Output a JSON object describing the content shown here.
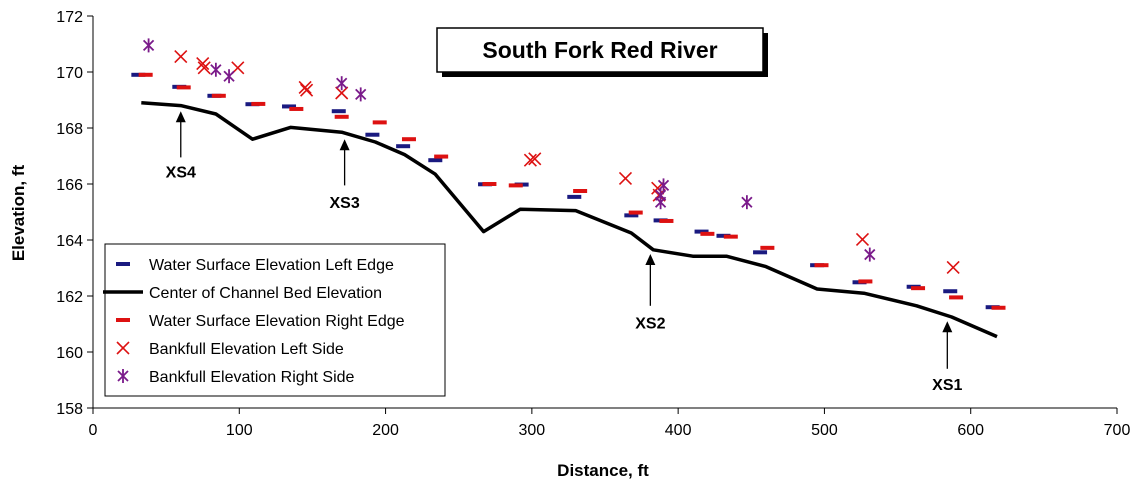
{
  "chart_data": {
    "type": "scatter",
    "title": "South Fork Red River",
    "xlabel": "Distance, ft",
    "ylabel": "Elevation, ft",
    "xlim": [
      0,
      700
    ],
    "ylim": [
      158,
      172
    ],
    "xticks": [
      0,
      100,
      200,
      300,
      400,
      500,
      600,
      700
    ],
    "yticks": [
      158,
      160,
      162,
      164,
      166,
      168,
      170,
      172
    ],
    "grid": false,
    "legend_position": "bottom-left",
    "series": [
      {
        "name": "Water Surface Elevation Left Edge",
        "marker": "dash",
        "color": "#1a1a80",
        "points": [
          [
            31,
            169.9
          ],
          [
            59,
            169.47
          ],
          [
            83,
            169.15
          ],
          [
            109,
            168.85
          ],
          [
            134,
            168.77
          ],
          [
            168,
            168.6
          ],
          [
            191,
            167.76
          ],
          [
            212,
            167.35
          ],
          [
            234,
            166.85
          ],
          [
            268,
            165.99
          ],
          [
            293,
            165.98
          ],
          [
            329,
            165.54
          ],
          [
            368,
            164.88
          ],
          [
            388,
            164.7
          ],
          [
            416,
            164.3
          ],
          [
            431,
            164.15
          ],
          [
            456,
            163.56
          ],
          [
            495,
            163.1
          ],
          [
            524,
            162.49
          ],
          [
            561,
            162.33
          ],
          [
            586,
            162.17
          ],
          [
            615,
            161.6
          ]
        ]
      },
      {
        "name": "Center of Channel Bed Elevation",
        "marker": "line",
        "color": "#000000",
        "points": [
          [
            33,
            168.9
          ],
          [
            60,
            168.8
          ],
          [
            84,
            168.5
          ],
          [
            109,
            167.6
          ],
          [
            135,
            168.02
          ],
          [
            170,
            167.85
          ],
          [
            193,
            167.5
          ],
          [
            213,
            167.05
          ],
          [
            234,
            166.35
          ],
          [
            267,
            164.3
          ],
          [
            292,
            165.1
          ],
          [
            330,
            165.05
          ],
          [
            368,
            164.25
          ],
          [
            383,
            163.65
          ],
          [
            410,
            163.42
          ],
          [
            433,
            163.42
          ],
          [
            460,
            163.05
          ],
          [
            495,
            162.25
          ],
          [
            527,
            162.1
          ],
          [
            563,
            161.65
          ],
          [
            587,
            161.25
          ],
          [
            618,
            160.55
          ]
        ]
      },
      {
        "name": "Water Surface Elevation Right Edge",
        "marker": "dash",
        "color": "#dd1111",
        "points": [
          [
            36,
            169.9
          ],
          [
            62,
            169.45
          ],
          [
            86,
            169.15
          ],
          [
            113,
            168.86
          ],
          [
            139,
            168.68
          ],
          [
            170,
            168.4
          ],
          [
            196,
            168.2
          ],
          [
            216,
            167.6
          ],
          [
            238,
            166.98
          ],
          [
            271,
            166.0
          ],
          [
            289,
            165.95
          ],
          [
            333,
            165.75
          ],
          [
            371,
            164.98
          ],
          [
            392,
            164.68
          ],
          [
            420,
            164.22
          ],
          [
            436,
            164.12
          ],
          [
            461,
            163.72
          ],
          [
            498,
            163.1
          ],
          [
            528,
            162.52
          ],
          [
            564,
            162.28
          ],
          [
            590,
            161.95
          ],
          [
            619,
            161.58
          ]
        ]
      },
      {
        "name": "Bankfull Elevation Left Side",
        "marker": "x",
        "color": "#dd1111",
        "points": [
          [
            60,
            170.55
          ],
          [
            75,
            170.3
          ],
          [
            76,
            170.15
          ],
          [
            99,
            170.15
          ],
          [
            145,
            169.45
          ],
          [
            146,
            169.35
          ],
          [
            170,
            169.25
          ],
          [
            299,
            166.85
          ],
          [
            302,
            166.9
          ],
          [
            364,
            166.2
          ],
          [
            386,
            165.85
          ],
          [
            387,
            165.6
          ],
          [
            526,
            164.02
          ],
          [
            588,
            163.02
          ]
        ]
      },
      {
        "name": "Bankfull Elevation Right Side",
        "marker": "star",
        "color": "#7a1a8a",
        "points": [
          [
            38,
            170.95
          ],
          [
            84,
            170.08
          ],
          [
            93,
            169.85
          ],
          [
            170,
            169.6
          ],
          [
            183,
            169.2
          ],
          [
            390,
            165.95
          ],
          [
            388,
            165.6
          ],
          [
            388,
            165.35
          ],
          [
            447,
            165.35
          ],
          [
            531,
            163.48
          ]
        ]
      }
    ],
    "annotations": [
      {
        "text": "XS4",
        "x": 60,
        "arrow_tip_y": 168.6,
        "arrow_tail_y": 166.95,
        "label_y": 166.45
      },
      {
        "text": "XS3",
        "x": 172,
        "arrow_tip_y": 167.6,
        "arrow_tail_y": 165.95,
        "label_y": 165.35
      },
      {
        "text": "XS2",
        "x": 381,
        "arrow_tip_y": 163.5,
        "arrow_tail_y": 161.65,
        "label_y": 161.05
      },
      {
        "text": "XS1",
        "x": 584,
        "arrow_tip_y": 161.1,
        "arrow_tail_y": 159.4,
        "label_y": 158.85
      }
    ]
  }
}
